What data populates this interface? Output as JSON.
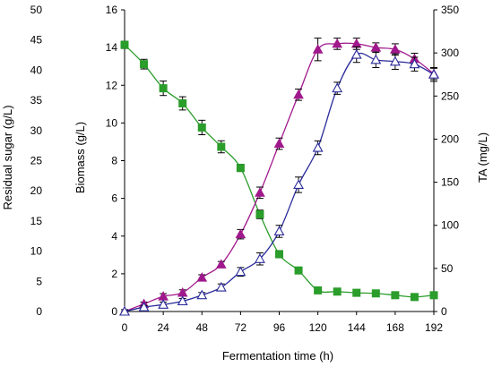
{
  "chart_data": {
    "type": "line",
    "xlabel": "Fermentation time (h)",
    "x_ticks": [
      0,
      24,
      48,
      72,
      96,
      120,
      144,
      168,
      192
    ],
    "xlim": [
      0,
      192
    ],
    "y_axes": {
      "sugar": {
        "label": "Residual sugar (g/L)",
        "lim": [
          0,
          50
        ],
        "ticks": [
          0,
          5,
          10,
          15,
          20,
          25,
          30,
          35,
          40,
          45,
          50
        ]
      },
      "biomass": {
        "label": "Biomass (g/L)",
        "lim": [
          0,
          16
        ],
        "ticks": [
          0,
          2,
          4,
          6,
          8,
          10,
          12,
          14,
          16
        ]
      },
      "ta": {
        "label": "TA (mg/L)",
        "lim": [
          0,
          350
        ],
        "ticks": [
          0,
          50,
          100,
          150,
          200,
          250,
          300,
          350
        ]
      }
    },
    "grid": false,
    "legend": "none",
    "series": [
      {
        "axis": "sugar",
        "color": "#2a9d2a",
        "line_color": "#2a9d2a",
        "marker": "square-filled",
        "x": [
          0,
          12,
          24,
          36,
          48,
          60,
          72,
          84,
          96,
          108,
          120,
          132,
          144,
          156,
          168,
          180,
          192
        ],
        "y": [
          44.2,
          41.0,
          37.0,
          34.5,
          30.5,
          27.3,
          23.8,
          16.1,
          9.5,
          6.8,
          3.5,
          3.3,
          3.1,
          3.0,
          2.7,
          2.4,
          2.7
        ],
        "err": [
          0.6,
          0.8,
          1.2,
          1.1,
          1.2,
          1.0,
          0.6,
          0.7,
          0.6,
          0.5,
          0.3,
          0.4,
          0.3,
          0.3,
          0.3,
          0.3,
          0.3
        ]
      },
      {
        "axis": "biomass",
        "color": "#a0188c",
        "line_color": "#a0188c",
        "marker": "triangle-filled",
        "x": [
          0,
          12,
          24,
          36,
          48,
          60,
          72,
          84,
          96,
          108,
          120,
          132,
          144,
          156,
          168,
          180,
          192
        ],
        "y": [
          0.0,
          0.4,
          0.8,
          1.0,
          1.8,
          2.5,
          4.1,
          6.3,
          8.9,
          11.5,
          13.9,
          14.2,
          14.2,
          14.0,
          13.9,
          13.4,
          12.6
        ],
        "err": [
          0.1,
          0.1,
          0.15,
          0.15,
          0.15,
          0.15,
          0.25,
          0.3,
          0.3,
          0.3,
          0.6,
          0.3,
          0.3,
          0.25,
          0.3,
          0.3,
          0.3
        ]
      },
      {
        "axis": "ta",
        "color": "#2a2a9a",
        "line_color": "#2a2a9a",
        "marker": "triangle-open",
        "x": [
          0,
          12,
          24,
          36,
          48,
          60,
          72,
          84,
          96,
          108,
          120,
          132,
          144,
          156,
          168,
          180,
          192
        ],
        "y": [
          0,
          5,
          8,
          12,
          19,
          28,
          46,
          61,
          93,
          147,
          190,
          259,
          298,
          292,
          290,
          287,
          275
        ],
        "err": [
          0,
          2,
          3,
          3,
          3,
          4,
          5,
          7,
          7,
          9,
          8,
          7,
          9,
          9,
          9,
          8,
          8
        ]
      }
    ]
  }
}
